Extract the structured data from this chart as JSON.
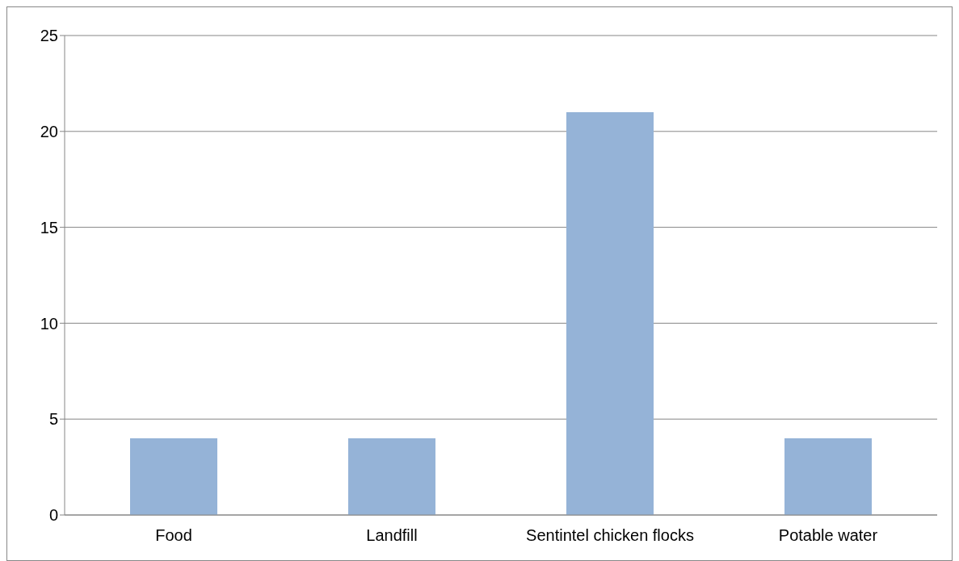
{
  "chart_data": {
    "type": "bar",
    "categories": [
      "Food",
      "Landfill",
      "Sentintel chicken flocks",
      "Potable water"
    ],
    "values": [
      4,
      4,
      21,
      4
    ],
    "color": "#95b3d7",
    "ylim": [
      0,
      25
    ],
    "yticks": [
      0,
      5,
      10,
      15,
      20,
      25
    ],
    "grid": "y"
  }
}
